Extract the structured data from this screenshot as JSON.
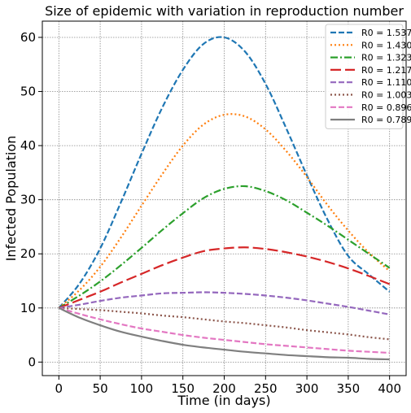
{
  "chart_data": {
    "type": "line",
    "title": "Size of epidemic with variation in reproduction number",
    "xlabel": "Time (in days)",
    "ylabel": "Infected Population",
    "xlim": [
      -20,
      420
    ],
    "ylim": [
      -2.5,
      63
    ],
    "xticks": [
      0,
      50,
      100,
      150,
      200,
      250,
      300,
      350,
      400
    ],
    "yticks": [
      0,
      10,
      20,
      30,
      40,
      50,
      60
    ],
    "grid": true,
    "legend_position": "top-right",
    "x": [
      0,
      25,
      50,
      75,
      100,
      125,
      150,
      175,
      200,
      225,
      250,
      275,
      300,
      325,
      350,
      375,
      400
    ],
    "series": [
      {
        "name": "R0 = 1.537",
        "color": "#1f77b4",
        "style": "dashed",
        "values": [
          10,
          14.5,
          21,
          29.5,
          38.5,
          47,
          54,
          58.8,
          60,
          57.4,
          51.4,
          43.2,
          34.5,
          26.3,
          19.6,
          16.2,
          13
        ]
      },
      {
        "name": "R0 = 1.430",
        "color": "#ff7f0e",
        "style": "dotted",
        "values": [
          10,
          13.3,
          17.6,
          23,
          28.9,
          34.7,
          40,
          43.9,
          45.7,
          45.4,
          43,
          39,
          34.2,
          29,
          24.3,
          20.2,
          16.8
        ]
      },
      {
        "name": "R0 = 1.323",
        "color": "#2ca02c",
        "style": "dashdot",
        "values": [
          10,
          12.3,
          14.9,
          17.9,
          21.1,
          24.4,
          27.5,
          30.3,
          32,
          32.5,
          31.6,
          29.9,
          27.6,
          25.2,
          22.6,
          20,
          17.4
        ]
      },
      {
        "name": "R0 = 1.217",
        "color": "#d62728",
        "style": "longdash",
        "values": [
          10,
          11.5,
          13,
          14.7,
          16.3,
          17.9,
          19.3,
          20.5,
          21,
          21.2,
          20.9,
          20.3,
          19.5,
          18.5,
          17.3,
          15.9,
          14.4
        ]
      },
      {
        "name": "R0 = 1.110",
        "color": "#9467bd",
        "style": "dashed",
        "values": [
          10,
          10.6,
          11.3,
          11.9,
          12.3,
          12.7,
          12.8,
          12.9,
          12.8,
          12.6,
          12.3,
          11.9,
          11.4,
          10.8,
          10.2,
          9.5,
          8.8
        ]
      },
      {
        "name": "R0 = 1.003",
        "color": "#8c564b",
        "style": "dotted",
        "values": [
          10,
          9.8,
          9.6,
          9.3,
          9,
          8.6,
          8.3,
          7.9,
          7.5,
          7.2,
          6.8,
          6.4,
          5.9,
          5.5,
          5.1,
          4.6,
          4.2
        ]
      },
      {
        "name": "R0 = 0.896",
        "color": "#e377c2",
        "style": "dashed",
        "values": [
          10,
          8.9,
          7.9,
          7,
          6.2,
          5.6,
          5,
          4.5,
          4.1,
          3.7,
          3.3,
          3,
          2.7,
          2.4,
          2.1,
          1.9,
          1.7
        ]
      },
      {
        "name": "R0 = 0.789",
        "color": "#7f7f7f",
        "style": "solid",
        "values": [
          10,
          8.2,
          6.8,
          5.6,
          4.7,
          3.9,
          3.2,
          2.7,
          2.3,
          1.9,
          1.6,
          1.3,
          1.1,
          0.9,
          0.8,
          0.6,
          0.5
        ]
      }
    ]
  }
}
